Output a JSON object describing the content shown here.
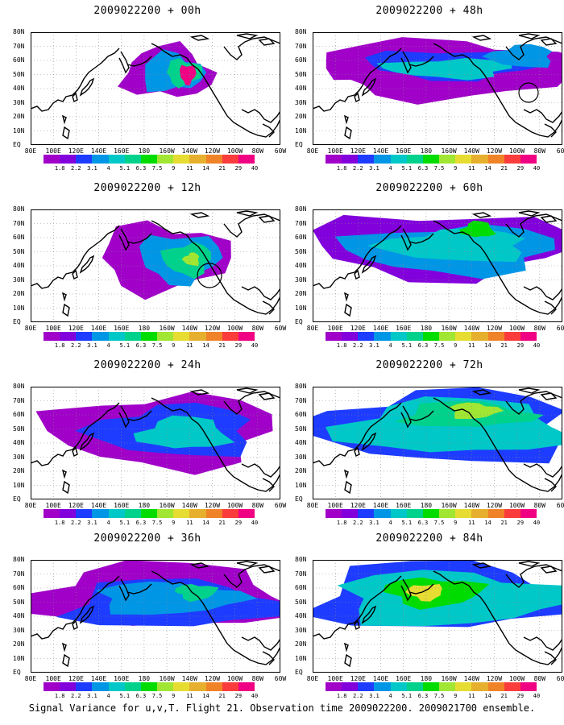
{
  "panels": [
    {
      "title": "2009022200 + 00h"
    },
    {
      "title": "2009022200 + 48h"
    },
    {
      "title": "2009022200 + 12h"
    },
    {
      "title": "2009022200 + 60h"
    },
    {
      "title": "2009022200 + 24h"
    },
    {
      "title": "2009022200 + 72h"
    },
    {
      "title": "2009022200 + 36h"
    },
    {
      "title": "2009022200 + 84h"
    }
  ],
  "lat_labels": [
    "80N",
    "70N",
    "60N",
    "50N",
    "40N",
    "30N",
    "20N",
    "10N",
    "EQ"
  ],
  "lon_labels": [
    "80E",
    "100E",
    "120E",
    "140E",
    "160E",
    "180",
    "160W",
    "140W",
    "120W",
    "100W",
    "80W",
    "60W"
  ],
  "colorbar": {
    "labels": [
      "1.8",
      "2.2",
      "3.1",
      "4",
      "5.1",
      "6.3",
      "7.5",
      "9",
      "11",
      "14",
      "21",
      "29",
      "40"
    ],
    "colors": [
      "#a000c8",
      "#8200dc",
      "#1e3cff",
      "#0096e6",
      "#00c8c8",
      "#00d28c",
      "#00dc00",
      "#a0e632",
      "#e6dc32",
      "#e6af2d",
      "#f08228",
      "#fa3c3c",
      "#f00082"
    ]
  },
  "footer": "Signal Variance for u,v,T. Flight 21. Observation time 2009022200. 2009021700 ensemble."
}
